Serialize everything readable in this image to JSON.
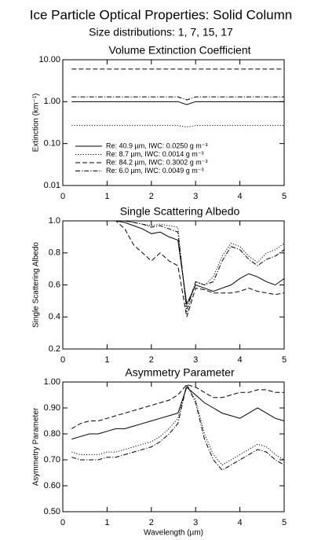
{
  "header": {
    "title": "Ice Particle Optical Properties: Solid Column",
    "subtitle": "Size distributions:  1,  7, 15, 17"
  },
  "chart_data": [
    {
      "type": "line",
      "title": "Volume Extinction Coefficient",
      "y_label": "Extinction (km⁻¹)",
      "yscale": "log",
      "legend": "lower-left",
      "x": [
        0.2,
        0.4,
        0.6,
        0.8,
        1.0,
        1.2,
        1.4,
        1.6,
        1.8,
        2.0,
        2.2,
        2.4,
        2.6,
        2.8,
        3.0,
        3.2,
        3.4,
        3.6,
        3.8,
        4.0,
        4.2,
        4.4,
        4.6,
        4.8,
        5.0
      ],
      "xlim": [
        0,
        5
      ],
      "xticks": [
        0,
        1,
        2,
        3,
        4,
        5
      ],
      "ylim": [
        0.01,
        10
      ],
      "yticks": [
        {
          "value": 0.01,
          "label": "0.01"
        },
        {
          "value": 0.1,
          "label": "0.10"
        },
        {
          "value": 1,
          "label": "1.00"
        },
        {
          "value": 10,
          "label": "10.00"
        }
      ],
      "series": [
        {
          "name": "Re:  40.9 µm, IWC: 0.0250 g m⁻³",
          "color": "#000000",
          "dash": "solid",
          "values": [
            1.0,
            1.0,
            1.0,
            1.0,
            1.0,
            1.0,
            1.0,
            1.0,
            1.0,
            1.0,
            1.0,
            1.0,
            1.0,
            0.85,
            1.0,
            1.0,
            1.0,
            1.0,
            1.0,
            1.0,
            1.0,
            1.0,
            1.0,
            1.0,
            1.0
          ]
        },
        {
          "name": "Re:   8.7 µm, IWC: 0.0014 g m⁻³",
          "color": "#000000",
          "dash": "dotted",
          "values": [
            0.27,
            0.27,
            0.27,
            0.27,
            0.27,
            0.27,
            0.27,
            0.27,
            0.27,
            0.27,
            0.27,
            0.27,
            0.27,
            0.25,
            0.27,
            0.27,
            0.27,
            0.27,
            0.27,
            0.27,
            0.27,
            0.27,
            0.27,
            0.27,
            0.27
          ]
        },
        {
          "name": "Re:  84.2 µm, IWC: 0.3002 g m⁻³",
          "color": "#000000",
          "dash": "dashed",
          "values": [
            6.0,
            6.0,
            6.0,
            6.0,
            6.0,
            6.0,
            6.0,
            6.0,
            6.0,
            6.0,
            6.0,
            6.0,
            6.0,
            6.0,
            6.0,
            6.0,
            6.0,
            6.0,
            6.0,
            6.0,
            6.0,
            6.0,
            6.0,
            6.0,
            6.0
          ]
        },
        {
          "name": "Re:   6.0 µm, IWC: 0.0049 g m⁻³",
          "color": "#000000",
          "dash": "dashdot",
          "values": [
            1.3,
            1.3,
            1.3,
            1.3,
            1.3,
            1.3,
            1.3,
            1.3,
            1.3,
            1.3,
            1.3,
            1.3,
            1.3,
            1.1,
            1.3,
            1.3,
            1.3,
            1.3,
            1.3,
            1.3,
            1.3,
            1.3,
            1.3,
            1.3,
            1.3
          ]
        }
      ]
    },
    {
      "type": "line",
      "title": "Single Scattering Albedo",
      "y_label": "Single Scattering Albedo",
      "yscale": "linear",
      "x": [
        0.2,
        0.4,
        0.6,
        0.8,
        1.0,
        1.2,
        1.4,
        1.6,
        1.8,
        2.0,
        2.2,
        2.4,
        2.6,
        2.8,
        3.0,
        3.2,
        3.4,
        3.6,
        3.8,
        4.0,
        4.2,
        4.4,
        4.6,
        4.8,
        5.0
      ],
      "xlim": [
        0,
        5
      ],
      "xticks": [
        0,
        1,
        2,
        3,
        4,
        5
      ],
      "ylim": [
        0.2,
        1.0
      ],
      "yticks": [
        0.2,
        0.4,
        0.6,
        0.8,
        {
          "value": 1.0,
          "label": "1.0"
        }
      ],
      "series": [
        {
          "color": "#000000",
          "dash": "solid",
          "values": [
            1.0,
            1.0,
            1.0,
            1.0,
            1.0,
            1.0,
            0.99,
            0.97,
            0.95,
            0.92,
            0.93,
            0.9,
            0.88,
            0.48,
            0.6,
            0.58,
            0.56,
            0.58,
            0.6,
            0.64,
            0.67,
            0.65,
            0.62,
            0.6,
            0.64
          ]
        },
        {
          "color": "#000000",
          "dash": "dotted",
          "values": [
            1.0,
            1.0,
            1.0,
            1.0,
            1.0,
            1.0,
            1.0,
            0.99,
            0.98,
            0.97,
            0.98,
            0.97,
            0.96,
            0.42,
            0.62,
            0.6,
            0.65,
            0.78,
            0.86,
            0.84,
            0.78,
            0.74,
            0.8,
            0.82,
            0.86
          ]
        },
        {
          "color": "#000000",
          "dash": "dashed",
          "values": [
            1.0,
            1.0,
            1.0,
            1.0,
            1.0,
            1.0,
            0.95,
            0.85,
            0.8,
            0.75,
            0.8,
            0.75,
            0.72,
            0.4,
            0.58,
            0.57,
            0.55,
            0.55,
            0.55,
            0.56,
            0.58,
            0.56,
            0.55,
            0.54,
            0.55
          ]
        },
        {
          "color": "#000000",
          "dash": "dashdot",
          "values": [
            1.0,
            1.0,
            1.0,
            1.0,
            1.0,
            1.0,
            1.0,
            0.99,
            0.98,
            0.96,
            0.97,
            0.95,
            0.93,
            0.45,
            0.62,
            0.6,
            0.62,
            0.75,
            0.84,
            0.82,
            0.76,
            0.72,
            0.76,
            0.78,
            0.82
          ]
        }
      ]
    },
    {
      "type": "line",
      "title": "Asymmetry Parameter",
      "y_label": "Asymmetry Parameter",
      "x_label": "Wavelength (µm)",
      "yscale": "linear",
      "x": [
        0.2,
        0.4,
        0.6,
        0.8,
        1.0,
        1.2,
        1.4,
        1.6,
        1.8,
        2.0,
        2.2,
        2.4,
        2.6,
        2.8,
        3.0,
        3.2,
        3.4,
        3.6,
        3.8,
        4.0,
        4.2,
        4.4,
        4.6,
        4.8,
        5.0
      ],
      "xlim": [
        0,
        5
      ],
      "xticks": [
        0,
        1,
        2,
        3,
        4,
        5
      ],
      "ylim": [
        0.5,
        1.0
      ],
      "yticks": [
        {
          "value": 0.5,
          "label": "0.50"
        },
        {
          "value": 0.6,
          "label": "0.60"
        },
        {
          "value": 0.7,
          "label": "0.70"
        },
        {
          "value": 0.8,
          "label": "0.80"
        },
        {
          "value": 0.9,
          "label": "0.90"
        },
        {
          "value": 1.0,
          "label": "1.00"
        }
      ],
      "series": [
        {
          "color": "#000000",
          "dash": "solid",
          "values": [
            0.78,
            0.79,
            0.8,
            0.8,
            0.81,
            0.82,
            0.82,
            0.83,
            0.84,
            0.85,
            0.86,
            0.87,
            0.88,
            0.98,
            0.95,
            0.92,
            0.9,
            0.88,
            0.87,
            0.86,
            0.88,
            0.9,
            0.88,
            0.86,
            0.85
          ]
        },
        {
          "color": "#000000",
          "dash": "dotted",
          "values": [
            0.73,
            0.72,
            0.72,
            0.72,
            0.73,
            0.73,
            0.74,
            0.75,
            0.76,
            0.77,
            0.79,
            0.82,
            0.86,
            0.99,
            0.93,
            0.8,
            0.72,
            0.68,
            0.7,
            0.72,
            0.74,
            0.76,
            0.75,
            0.72,
            0.7
          ]
        },
        {
          "color": "#000000",
          "dash": "dashed",
          "values": [
            0.82,
            0.84,
            0.85,
            0.85,
            0.86,
            0.87,
            0.88,
            0.89,
            0.9,
            0.91,
            0.92,
            0.93,
            0.95,
            0.99,
            0.98,
            0.96,
            0.94,
            0.94,
            0.95,
            0.96,
            0.96,
            0.97,
            0.97,
            0.96,
            0.96
          ]
        },
        {
          "color": "#000000",
          "dash": "dashdot",
          "values": [
            0.71,
            0.7,
            0.7,
            0.7,
            0.71,
            0.71,
            0.72,
            0.73,
            0.74,
            0.75,
            0.77,
            0.8,
            0.84,
            0.99,
            0.92,
            0.78,
            0.7,
            0.66,
            0.68,
            0.7,
            0.72,
            0.74,
            0.73,
            0.7,
            0.68
          ]
        }
      ]
    }
  ]
}
